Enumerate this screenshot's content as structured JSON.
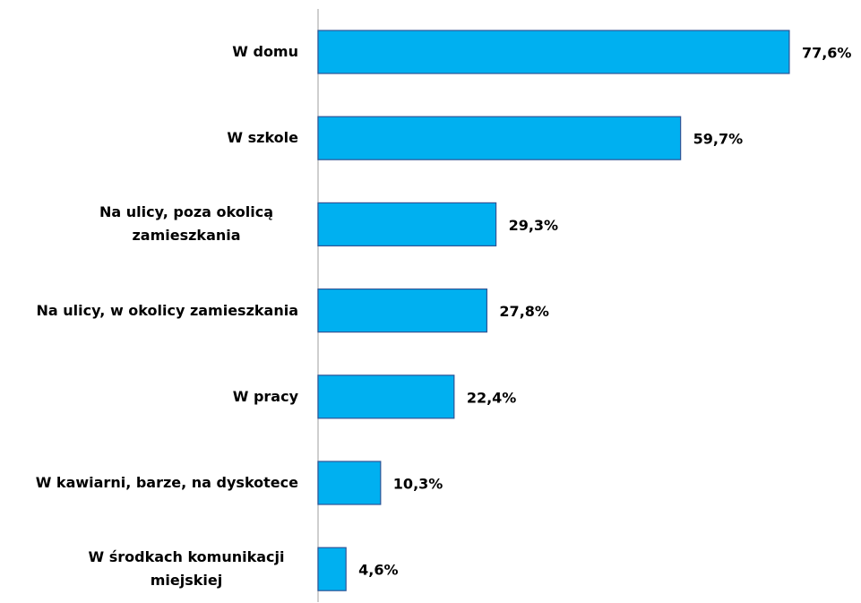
{
  "chart_data": {
    "type": "bar",
    "orientation": "horizontal",
    "categories": [
      "W domu",
      "W szkole",
      "Na ulicy, poza okolicą zamieszkania",
      "Na ulicy, w okolicy zamieszkania",
      "W pracy",
      "W kawiarni, barze, na dyskotece",
      "W środkach komunikacji miejskiej"
    ],
    "values": [
      77.6,
      59.7,
      29.3,
      27.8,
      22.4,
      10.3,
      4.6
    ],
    "value_labels": [
      "77,6%",
      "59,7%",
      "29,3%",
      "27,8%",
      "22,4%",
      "10,3%",
      "4,6%"
    ],
    "color": "#00b0f0",
    "xlim": [
      0,
      90
    ]
  }
}
